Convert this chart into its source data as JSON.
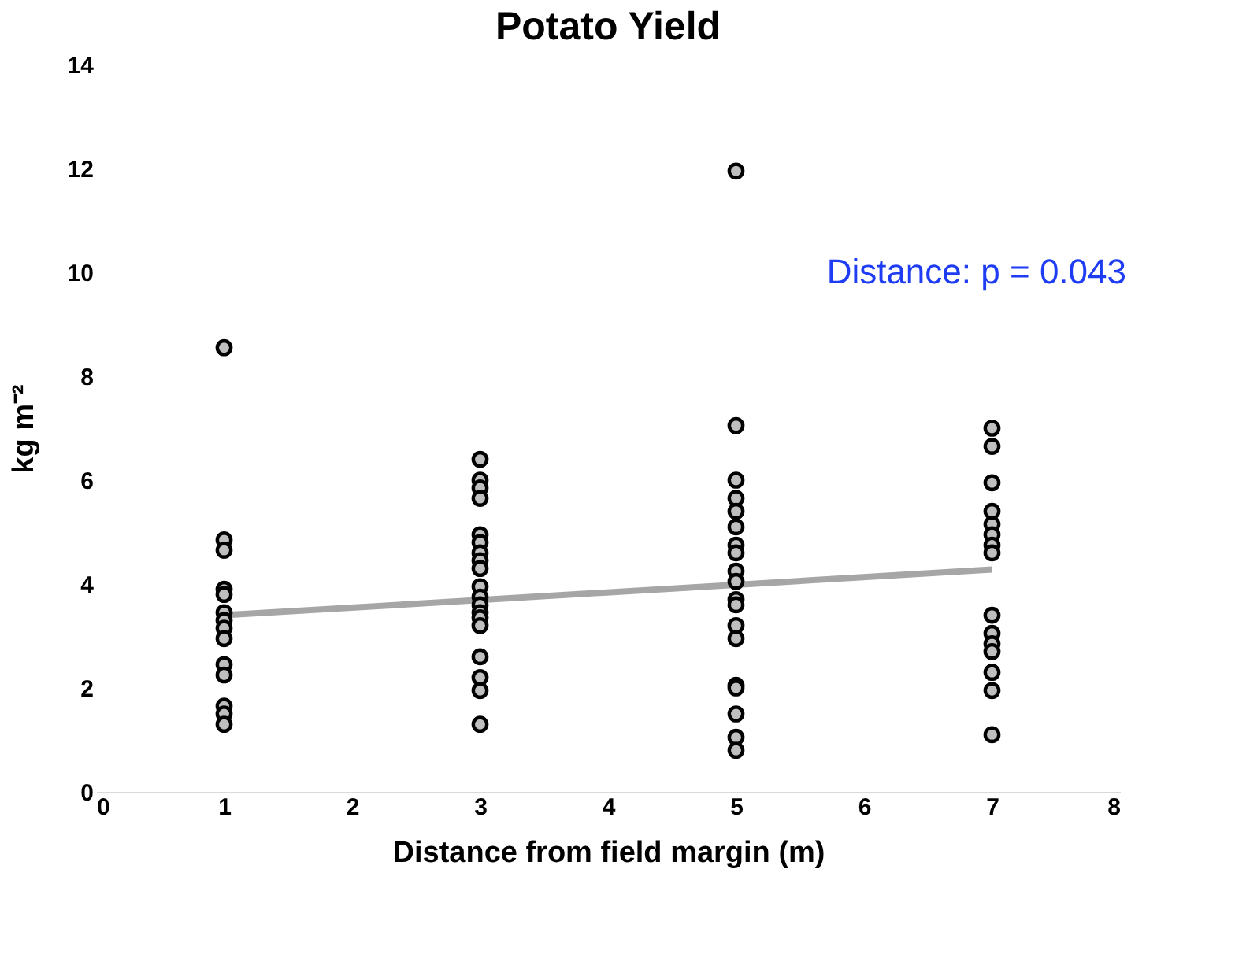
{
  "chart_data": {
    "type": "scatter",
    "title": "Potato Yield",
    "xlabel": "Distance from field margin (m)",
    "ylabel": "kg m⁻²",
    "annotations": [
      "Distance: p = 0.043"
    ],
    "series": [
      {
        "color": "#bfbfbf",
        "marker": "circle",
        "x": [
          1,
          1,
          1,
          1,
          1,
          1,
          1,
          1,
          1,
          1,
          1,
          1,
          1,
          1,
          3,
          3,
          3,
          3,
          3,
          3,
          3,
          3,
          3,
          3,
          3,
          3,
          3,
          3,
          3,
          3,
          3,
          3,
          3,
          5,
          5,
          5,
          5,
          5,
          5,
          5,
          5,
          5,
          5,
          5,
          5,
          5,
          5,
          5,
          5,
          5,
          5,
          5,
          7,
          7,
          7,
          7,
          7,
          7,
          7,
          7,
          7,
          7,
          7,
          7,
          7,
          7,
          7
        ],
        "values": [
          8.55,
          4.85,
          4.65,
          3.9,
          3.8,
          3.45,
          3.3,
          3.15,
          2.95,
          2.45,
          2.25,
          1.65,
          1.5,
          1.3,
          6.4,
          6.0,
          5.85,
          5.65,
          4.95,
          4.8,
          4.6,
          4.45,
          4.3,
          3.95,
          3.75,
          3.6,
          3.45,
          3.35,
          3.2,
          2.6,
          2.2,
          1.95,
          1.3,
          11.95,
          7.05,
          6.0,
          5.65,
          5.4,
          5.1,
          4.75,
          4.6,
          4.25,
          4.05,
          3.7,
          3.6,
          3.2,
          2.95,
          2.05,
          2.0,
          1.5,
          1.05,
          0.8,
          7.0,
          6.65,
          5.95,
          5.4,
          5.15,
          4.95,
          4.75,
          4.6,
          3.4,
          3.05,
          2.85,
          2.7,
          2.3,
          1.95,
          1.1
        ]
      },
      {
        "type": "line",
        "color": "#a6a6a6",
        "x": [
          1,
          7
        ],
        "values": [
          3.4,
          4.28
        ]
      }
    ],
    "xlim": [
      0,
      8
    ],
    "xticks": [
      0,
      1,
      2,
      3,
      4,
      5,
      6,
      7,
      8
    ],
    "ylim": [
      0,
      14
    ],
    "yticks": [
      0,
      2,
      4,
      6,
      8,
      10,
      12,
      14
    ],
    "grid": false
  }
}
